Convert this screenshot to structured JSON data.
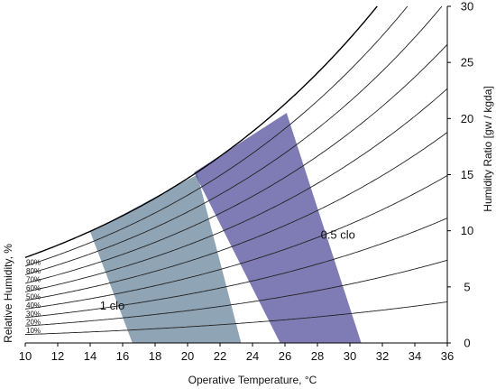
{
  "chart_data": {
    "type": "psychrometric",
    "xlabel": "Operative Temperature, °C",
    "ylabel_right": "Humidity Ratio [gw / kgda]",
    "ylabel_left": "Relative Humidity, %",
    "xlim": [
      10,
      36
    ],
    "ylim": [
      0,
      30
    ],
    "x_ticks": [
      10,
      12,
      14,
      16,
      18,
      20,
      22,
      24,
      26,
      28,
      30,
      32,
      34,
      36
    ],
    "y_ticks": [
      0,
      5,
      10,
      15,
      20,
      25,
      30
    ],
    "rh_curves": [
      {
        "rh": 10,
        "label": "10%"
      },
      {
        "rh": 20,
        "label": "20%"
      },
      {
        "rh": 30,
        "label": "30%"
      },
      {
        "rh": 40,
        "label": "40%"
      },
      {
        "rh": 50,
        "label": "50%"
      },
      {
        "rh": 60,
        "label": "60%"
      },
      {
        "rh": 70,
        "label": "70%"
      },
      {
        "rh": 80,
        "label": "80%"
      },
      {
        "rh": 90,
        "label": "90%"
      },
      {
        "rh": 100,
        "label": ""
      }
    ],
    "zones": [
      {
        "name": "1 clo",
        "color": "#6f8aa0",
        "opacity": 0.78,
        "label_at": [
          14.6,
          3.3
        ],
        "polygon": [
          [
            16.6,
            0
          ],
          [
            23.3,
            0
          ],
          [
            20.6,
            15.0
          ],
          [
            14.0,
            9.9
          ]
        ]
      },
      {
        "name": "0.5 clo",
        "color": "#4e4898",
        "opacity": 0.72,
        "label_at": [
          28.2,
          9.6
        ],
        "polygon": [
          [
            25.7,
            0
          ],
          [
            30.7,
            0
          ],
          [
            26.1,
            20.5
          ],
          [
            20.4,
            15.2
          ]
        ]
      }
    ],
    "grid": false,
    "legend": "none"
  }
}
